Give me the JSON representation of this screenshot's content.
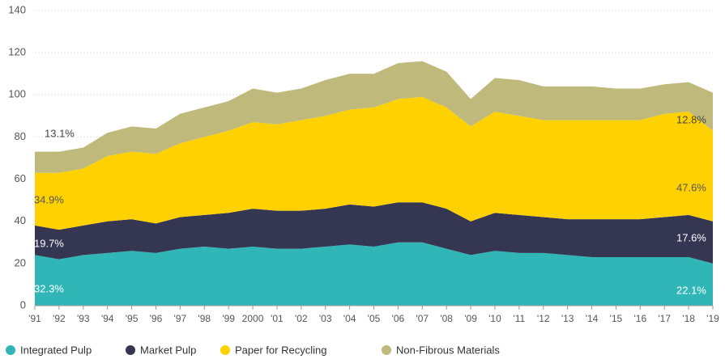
{
  "chart_data": {
    "type": "stacked_area",
    "categories": [
      "'91",
      "'92",
      "'93",
      "'94",
      "'95",
      "'96",
      "'97",
      "'98",
      "'99",
      "2000",
      "'01",
      "'02",
      "'03",
      "'04",
      "'05",
      "'06",
      "'07",
      "'08",
      "'09",
      "'10",
      "'11",
      "'12",
      "'13",
      "'14",
      "'15",
      "'16",
      "'17",
      "'18",
      "'19"
    ],
    "series": [
      {
        "name": "Integrated Pulp",
        "color": "#31b6b7",
        "values": [
          24,
          22,
          24,
          25,
          26,
          25,
          27,
          28,
          27,
          28,
          27,
          27,
          28,
          29,
          28,
          30,
          30,
          27,
          24,
          26,
          25,
          25,
          24,
          23,
          23,
          23,
          23,
          23,
          20
        ]
      },
      {
        "name": "Market Pulp",
        "color": "#343652",
        "values": [
          14,
          14,
          14,
          15,
          15,
          14,
          15,
          15,
          17,
          18,
          18,
          18,
          18,
          19,
          19,
          19,
          19,
          19,
          16,
          18,
          18,
          17,
          17,
          18,
          18,
          18,
          19,
          20,
          20
        ]
      },
      {
        "name": "Paper for Recycling",
        "color": "#ffd100",
        "values": [
          25,
          27,
          27,
          31,
          32,
          33,
          35,
          37,
          39,
          41,
          41,
          43,
          44,
          45,
          47,
          49,
          50,
          48,
          45,
          48,
          47,
          46,
          47,
          47,
          47,
          47,
          49,
          49,
          43
        ]
      },
      {
        "name": "Non-Fibrous Materials",
        "color": "#bfb97b",
        "values": [
          10,
          10,
          10,
          11,
          12,
          12,
          14,
          14,
          14,
          16,
          15,
          15,
          17,
          17,
          16,
          17,
          17,
          17,
          13,
          16,
          17,
          16,
          16,
          16,
          15,
          15,
          14,
          14,
          18
        ]
      }
    ],
    "annotations": [
      "13.1%",
      "34.9%",
      "19.7%",
      "32.3%",
      "12.8%",
      "47.6%",
      "17.6%",
      "22.1%"
    ],
    "ylim": [
      0,
      140
    ],
    "yticks": [
      0,
      20,
      40,
      60,
      80,
      100,
      120,
      140
    ],
    "grid": true,
    "legend": "bottom"
  }
}
